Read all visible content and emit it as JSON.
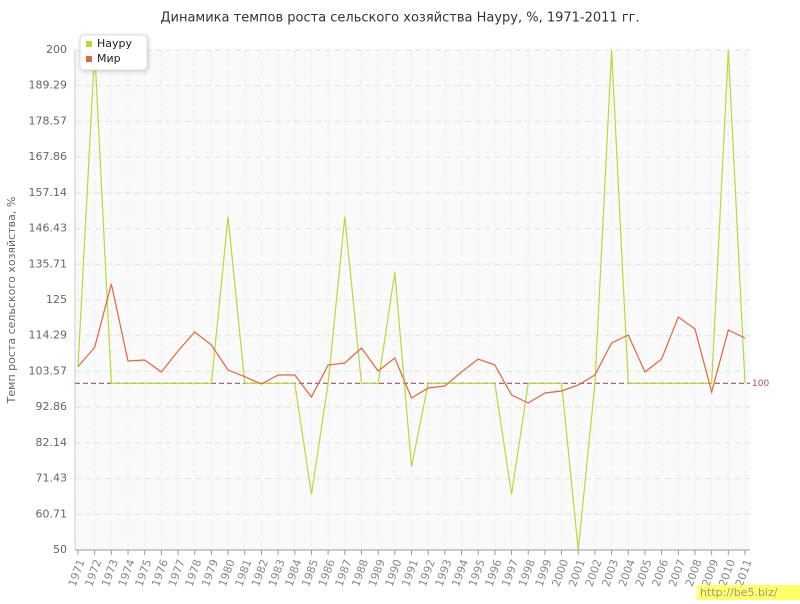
{
  "chart_data": {
    "type": "line",
    "title": "Динамика темпов роста сельского хозяйства Науру, %, 1971-2011 гг.",
    "y_label": "Темп роста сельского хозяйства, %",
    "categories": [
      "1971",
      "1972",
      "1973",
      "1974",
      "1975",
      "1976",
      "1977",
      "1978",
      "1979",
      "1980",
      "1981",
      "1982",
      "1983",
      "1984",
      "1985",
      "1986",
      "1987",
      "1988",
      "1989",
      "1990",
      "1991",
      "1992",
      "1993",
      "1994",
      "1995",
      "1996",
      "1997",
      "1998",
      "1999",
      "2000",
      "2001",
      "2002",
      "2003",
      "2004",
      "2005",
      "2006",
      "2007",
      "2008",
      "2009",
      "2010",
      "2011"
    ],
    "series": [
      {
        "name": "Науру",
        "color": "#b8d93a",
        "values": [
          105,
          200,
          100,
          100,
          100,
          100,
          100,
          100,
          100,
          150,
          100,
          100,
          100,
          100,
          66.7,
          100,
          150,
          100,
          100,
          133.3,
          75,
          100,
          100,
          100,
          100,
          100,
          66.7,
          100,
          100,
          100,
          50,
          100,
          200,
          100,
          100,
          100,
          100,
          100,
          100,
          200,
          100
        ]
      },
      {
        "name": "Мир",
        "color": "#e0683a",
        "values": [
          105,
          110.8,
          129.8,
          106.7,
          107,
          103.4,
          109.7,
          115.4,
          111.5,
          104,
          102,
          99.8,
          102.5,
          102.5,
          95.9,
          105.5,
          106.1,
          110.6,
          103.7,
          107.6,
          95.6,
          98.6,
          99.2,
          103.4,
          107.3,
          105.5,
          96.5,
          94.1,
          97.1,
          97.7,
          99.5,
          102.5,
          112.1,
          114.5,
          103.4,
          107.3,
          119.9,
          116.3,
          97.4,
          116,
          113.6
        ]
      }
    ],
    "ylim": [
      50,
      200
    ],
    "yticks": [
      50,
      60.71,
      71.43,
      82.14,
      92.86,
      103.57,
      114.29,
      125,
      135.71,
      146.43,
      157.14,
      167.86,
      178.57,
      189.29,
      200
    ],
    "reference_line": 100,
    "reference_color": "#a0506e",
    "grid": true,
    "legend": "top-left"
  },
  "watermark": "http://be5.biz/"
}
